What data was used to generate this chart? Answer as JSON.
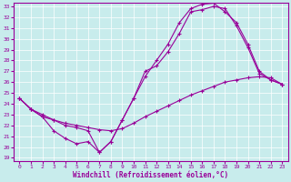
{
  "xlabel": "Windchill (Refroidissement éolien,°C)",
  "bg_color": "#c8ecec",
  "line_color": "#990099",
  "xlim": [
    -0.5,
    23.5
  ],
  "ylim": [
    18.7,
    33.3
  ],
  "yticks": [
    19,
    20,
    21,
    22,
    23,
    24,
    25,
    26,
    27,
    28,
    29,
    30,
    31,
    32,
    33
  ],
  "xticks": [
    0,
    1,
    2,
    3,
    4,
    5,
    6,
    7,
    8,
    9,
    10,
    11,
    12,
    13,
    14,
    15,
    16,
    17,
    18,
    19,
    20,
    21,
    22,
    23
  ],
  "line1_x": [
    0,
    1,
    2,
    3,
    4,
    5,
    6,
    7,
    8,
    9,
    10,
    11,
    12,
    13,
    14,
    15,
    16,
    17,
    18,
    19,
    20,
    21,
    22,
    23
  ],
  "line1_y": [
    24.5,
    23.5,
    22.8,
    22.5,
    22.2,
    22.0,
    21.8,
    21.6,
    21.5,
    21.7,
    22.2,
    22.8,
    23.3,
    23.8,
    24.3,
    24.8,
    25.2,
    25.6,
    26.0,
    26.2,
    26.4,
    26.5,
    26.4,
    25.8
  ],
  "line2_x": [
    0,
    1,
    2,
    3,
    4,
    5,
    6,
    7,
    8,
    9,
    10,
    11,
    12,
    13,
    14,
    15,
    16,
    17,
    18,
    19,
    20,
    21,
    22,
    23
  ],
  "line2_y": [
    24.5,
    23.5,
    22.8,
    21.5,
    20.8,
    20.3,
    20.5,
    19.5,
    20.5,
    22.5,
    24.5,
    27.0,
    27.5,
    28.8,
    30.5,
    32.5,
    32.7,
    33.0,
    32.8,
    31.2,
    29.2,
    26.8,
    26.2,
    25.8
  ],
  "line3_x": [
    0,
    1,
    2,
    3,
    4,
    5,
    6,
    7,
    8,
    9,
    10,
    11,
    12,
    13,
    14,
    15,
    16,
    17,
    18,
    19,
    20,
    21,
    22,
    23
  ],
  "line3_y": [
    24.5,
    23.5,
    23.0,
    22.5,
    22.0,
    21.8,
    21.5,
    19.5,
    20.5,
    22.5,
    24.5,
    26.5,
    28.0,
    29.5,
    31.5,
    32.8,
    33.2,
    33.3,
    32.5,
    31.5,
    29.5,
    27.0,
    26.2,
    25.8
  ]
}
